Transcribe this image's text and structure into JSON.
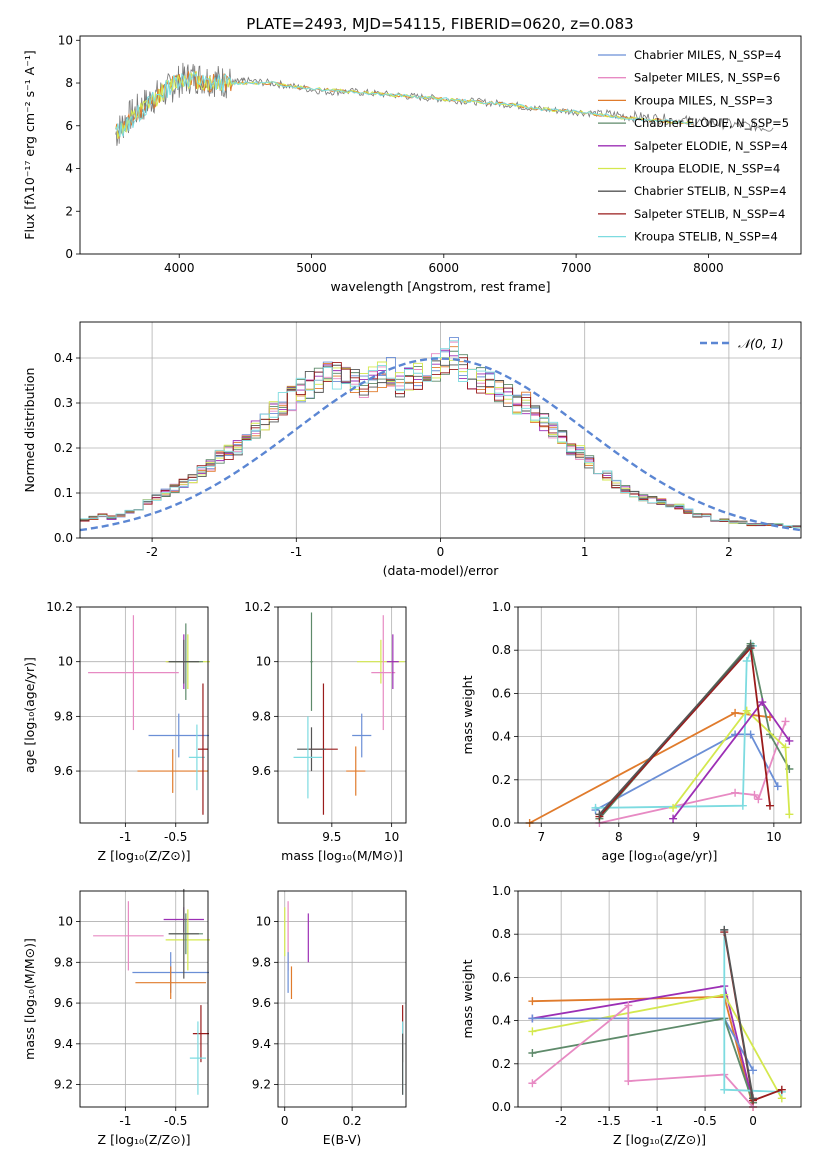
{
  "figure": {
    "title": "PLATE=2493, MJD=54115, FIBERID=0620, z=0.083"
  },
  "colors": {
    "Chabrier MILES": "#6b8fd6",
    "Salpeter MILES": "#e78ac3",
    "Kroupa MILES": "#e07b2c",
    "Chabrier ELODIE": "#5e8a6a",
    "Salpeter ELODIE": "#9c2fb5",
    "Kroupa ELODIE": "#d4e84e",
    "Chabrier STELIB": "#555555",
    "Salpeter STELIB": "#9a1c1c",
    "Kroupa STELIB": "#7ddbe0",
    "grid": "#b0b0b0",
    "gauss": "#5b86d3"
  },
  "chart_data": [
    {
      "id": "spectrum",
      "type": "line",
      "title": "PLATE=2493, MJD=54115, FIBERID=0620, z=0.083",
      "xlabel": "wavelength [Angstrom, rest frame]",
      "ylabel": "Flux [fλ10⁻¹⁷ erg cm⁻² s⁻¹ A⁻¹]",
      "xlim": [
        3250,
        8700
      ],
      "ylim": [
        0,
        10.2
      ],
      "xticks": [
        4000,
        5000,
        6000,
        7000,
        8000
      ],
      "yticks": [
        0,
        2,
        4,
        6,
        8,
        10
      ],
      "grid": false,
      "legend_position": "right",
      "legend": [
        "Chabrier MILES, N_SSP=4",
        "Salpeter MILES, N_SSP=6",
        "Kroupa MILES, N_SSP=3",
        "Chabrier ELODIE, N_SSP=5",
        "Salpeter ELODIE, N_SSP=4",
        "Kroupa ELODIE, N_SSP=4",
        "Chabrier STELIB, N_SSP=4",
        "Salpeter STELIB, N_SSP=4",
        "Kroupa STELIB, N_SSP=4"
      ],
      "data_series": {
        "name": "data",
        "x": [
          3520,
          3600,
          3700,
          3800,
          3900,
          4000,
          4100,
          4200,
          4300,
          4400,
          4500,
          4700,
          4900,
          5100,
          5300,
          5500,
          5700,
          5900,
          6100,
          6300,
          6500,
          6700,
          6900,
          7100,
          7300,
          7500,
          7700,
          7900,
          8100,
          8300,
          8500
        ],
        "y": [
          5.6,
          6.3,
          6.8,
          7.3,
          7.6,
          8.1,
          8.3,
          8.2,
          8.1,
          8.0,
          8.1,
          8.0,
          7.8,
          7.6,
          7.6,
          7.5,
          7.4,
          7.3,
          7.2,
          7.1,
          7.0,
          6.8,
          6.7,
          6.6,
          6.5,
          6.4,
          6.3,
          6.2,
          6.1,
          6.0,
          5.9
        ]
      },
      "model_series": {
        "name": "Kroupa STELIB, N_SSP=4",
        "x": [
          3520,
          3600,
          3700,
          3800,
          3900,
          4000,
          4100,
          4200,
          4300,
          4400,
          4500,
          4700,
          4900,
          5100,
          5300,
          5500,
          5700,
          5900,
          6100,
          6300,
          6500,
          6700,
          6900,
          7100,
          7300,
          7500,
          7700,
          7900
        ],
        "y": [
          5.7,
          6.0,
          6.6,
          7.2,
          7.7,
          8.2,
          8.2,
          8.0,
          8.0,
          8.0,
          8.0,
          8.0,
          7.8,
          7.7,
          7.6,
          7.5,
          7.4,
          7.3,
          7.2,
          7.1,
          7.0,
          6.8,
          6.7,
          6.6,
          6.4,
          6.3,
          6.2,
          6.1
        ]
      }
    },
    {
      "id": "residuals",
      "type": "bar",
      "xlabel": "(data-model)/error",
      "ylabel": "Normed distribution",
      "xlim": [
        -2.5,
        2.5
      ],
      "ylim": [
        0,
        0.48
      ],
      "xticks": [
        -2,
        -1,
        0,
        1,
        2
      ],
      "yticks": [
        0.0,
        0.1,
        0.2,
        0.3,
        0.4
      ],
      "grid": true,
      "legend_position": "top-right",
      "legend": [
        "𝒩(0, 1)"
      ],
      "bin_width": 0.1,
      "bin_start": -2.5,
      "histogram_envelope": [
        0.04,
        0.045,
        0.05,
        0.045,
        0.05,
        0.06,
        0.06,
        0.08,
        0.09,
        0.1,
        0.11,
        0.12,
        0.13,
        0.15,
        0.16,
        0.18,
        0.19,
        0.2,
        0.22,
        0.24,
        0.26,
        0.28,
        0.3,
        0.31,
        0.33,
        0.34,
        0.35,
        0.36,
        0.36,
        0.35,
        0.35,
        0.34,
        0.35,
        0.36,
        0.37,
        0.34,
        0.35,
        0.36,
        0.37,
        0.38,
        0.39,
        0.41,
        0.38,
        0.36,
        0.35,
        0.34,
        0.33,
        0.32,
        0.3,
        0.3,
        0.28,
        0.26,
        0.24,
        0.22,
        0.2,
        0.19,
        0.17,
        0.15,
        0.14,
        0.12,
        0.11,
        0.1,
        0.09,
        0.085,
        0.08,
        0.07,
        0.07,
        0.06,
        0.05,
        0.05,
        0.04,
        0.04,
        0.035,
        0.035,
        0.03,
        0.03,
        0.03,
        0.03,
        0.025,
        0.025
      ],
      "gauss_curve": {
        "name": "N(0,1)",
        "mean": 0,
        "sigma": 1,
        "style": "dashed"
      }
    },
    {
      "id": "age-vs-Z",
      "type": "scatter",
      "xlabel": "Z [log₁₀(Z/Z⊙)]",
      "ylabel": "age  [log₁₀(age/yr)]",
      "xlim": [
        -1.45,
        -0.18
      ],
      "ylim": [
        9.41,
        10.2
      ],
      "xticks": [
        -1.0,
        -0.5
      ],
      "yticks": [
        9.6,
        9.8,
        10.0,
        10.2
      ],
      "grid": true,
      "points": [
        {
          "series": "Salpeter MILES",
          "x": -0.92,
          "y": 9.96,
          "xerr": 0.45,
          "yerr": 0.21
        },
        {
          "series": "Kroupa MILES",
          "x": -0.53,
          "y": 9.6,
          "xerr": 0.35,
          "yerr": 0.08
        },
        {
          "series": "Chabrier MILES",
          "x": -0.47,
          "y": 9.73,
          "xerr": 0.3,
          "yerr": 0.08
        },
        {
          "series": "Salpeter ELODIE",
          "x": -0.42,
          "y": 10.0,
          "xerr": 0.17,
          "yerr": 0.1
        },
        {
          "series": "Kroupa ELODIE",
          "x": -0.38,
          "y": 10.0,
          "xerr": 0.22,
          "yerr": 0.1
        },
        {
          "series": "Chabrier ELODIE",
          "x": -0.4,
          "y": 10.0,
          "xerr": 0.17,
          "yerr": 0.14
        },
        {
          "series": "Chabrier STELIB",
          "x": -0.42,
          "y": 10.0,
          "xerr": 0.15,
          "yerr": 0.08
        },
        {
          "series": "Kroupa STELIB",
          "x": -0.29,
          "y": 9.65,
          "xerr": 0.08,
          "yerr": 0.12
        },
        {
          "series": "Salpeter STELIB",
          "x": -0.23,
          "y": 9.68,
          "xerr": 0.05,
          "yerr": 0.24
        }
      ]
    },
    {
      "id": "age-vs-mass",
      "type": "scatter",
      "xlabel": "mass [log₁₀(M/M⊙)]",
      "ylabel": "",
      "xlim": [
        9.05,
        10.12
      ],
      "ylim": [
        9.41,
        10.2
      ],
      "xticks": [
        9.5,
        10.0
      ],
      "yticks": [
        9.6,
        9.8,
        10.0,
        10.2
      ],
      "grid": true,
      "points": [
        {
          "series": "Salpeter STELIB",
          "x": 9.43,
          "y": 9.68,
          "xerr": 0.12,
          "yerr": 0.24
        },
        {
          "series": "Chabrier STELIB",
          "x": 9.33,
          "y": 9.68,
          "xerr": 0.12,
          "yerr": 0.08
        },
        {
          "series": "Kroupa STELIB",
          "x": 9.3,
          "y": 9.65,
          "xerr": 0.12,
          "yerr": 0.15
        },
        {
          "series": "Chabrier ELODIE",
          "x": 9.33,
          "y": 10.0,
          "xerr": 0.01,
          "yerr": 0.18
        },
        {
          "series": "Kroupa MILES",
          "x": 9.7,
          "y": 9.6,
          "xerr": 0.08,
          "yerr": 0.09
        },
        {
          "series": "Chabrier MILES",
          "x": 9.75,
          "y": 9.73,
          "xerr": 0.08,
          "yerr": 0.08
        },
        {
          "series": "Kroupa ELODIE",
          "x": 9.91,
          "y": 10.0,
          "xerr": 0.2,
          "yerr": 0.08
        },
        {
          "series": "Salpeter MILES",
          "x": 9.93,
          "y": 9.96,
          "xerr": 0.1,
          "yerr": 0.21
        },
        {
          "series": "Salpeter ELODIE",
          "x": 10.01,
          "y": 10.0,
          "xerr": 0.05,
          "yerr": 0.1
        }
      ]
    },
    {
      "id": "massweight-vs-age",
      "type": "line",
      "xlabel": "age  [log₁₀(age/yr)]",
      "ylabel": "mass weight",
      "xlim": [
        6.7,
        10.35
      ],
      "ylim": [
        0,
        1.0
      ],
      "xticks": [
        7,
        8,
        9,
        10
      ],
      "yticks": [
        0.0,
        0.2,
        0.4,
        0.6,
        0.8,
        1.0
      ],
      "grid": true,
      "series": [
        {
          "name": "Kroupa MILES",
          "x": [
            6.85,
            9.5,
            9.95
          ],
          "y": [
            0.0,
            0.51,
            0.49
          ]
        },
        {
          "name": "Chabrier MILES",
          "x": [
            7.7,
            9.5,
            9.7,
            10.05
          ],
          "y": [
            0.06,
            0.41,
            0.41,
            0.17
          ]
        },
        {
          "name": "Salpeter MILES",
          "x": [
            7.75,
            9.5,
            9.75,
            9.8,
            10.15
          ],
          "y": [
            0.0,
            0.14,
            0.13,
            0.11,
            0.47
          ]
        },
        {
          "name": "Kroupa STELIB",
          "x": [
            7.7,
            9.6,
            9.65,
            9.73
          ],
          "y": [
            0.07,
            0.08,
            0.75,
            0.82
          ]
        },
        {
          "name": "Chabrier ELODIE",
          "x": [
            7.75,
            9.7,
            9.95,
            10.2
          ],
          "y": [
            0.02,
            0.83,
            0.41,
            0.25
          ]
        },
        {
          "name": "Kroupa ELODIE",
          "x": [
            8.7,
            9.65,
            10.15,
            10.2
          ],
          "y": [
            0.07,
            0.52,
            0.35,
            0.04
          ]
        },
        {
          "name": "Salpeter ELODIE",
          "x": [
            8.7,
            9.85,
            10.2
          ],
          "y": [
            0.02,
            0.56,
            0.38
          ]
        },
        {
          "name": "Salpeter STELIB",
          "x": [
            7.75,
            9.7,
            9.95
          ],
          "y": [
            0.03,
            0.81,
            0.08
          ]
        },
        {
          "name": "Chabrier STELIB",
          "x": [
            7.75,
            9.7
          ],
          "y": [
            0.04,
            0.82
          ]
        }
      ]
    },
    {
      "id": "mass-vs-Z",
      "type": "scatter",
      "xlabel": "Z [log₁₀(Z/Z⊙)]",
      "ylabel": "mass [log₁₀(M/M⊙)]",
      "xlim": [
        -1.45,
        -0.18
      ],
      "ylim": [
        9.09,
        10.15
      ],
      "xticks": [
        -1.0,
        -0.5
      ],
      "yticks": [
        9.2,
        9.4,
        9.6,
        9.8,
        10.0
      ],
      "grid": true,
      "points": [
        {
          "series": "Salpeter MILES",
          "x": -0.97,
          "y": 9.93,
          "xerr": 0.35,
          "yerr": 0.17
        },
        {
          "series": "Salpeter ELODIE",
          "x": -0.42,
          "y": 10.01,
          "xerr": 0.2,
          "yerr": 0.06
        },
        {
          "series": "Kroupa ELODIE",
          "x": -0.38,
          "y": 9.91,
          "xerr": 0.22,
          "yerr": 0.15
        },
        {
          "series": "Chabrier ELODIE",
          "x": -0.4,
          "y": 9.94,
          "xerr": 0.17,
          "yerr": 0.1
        },
        {
          "series": "Chabrier MILES",
          "x": -0.55,
          "y": 9.75,
          "xerr": 0.38,
          "yerr": 0.1
        },
        {
          "series": "Kroupa MILES",
          "x": -0.55,
          "y": 9.7,
          "xerr": 0.35,
          "yerr": 0.08
        },
        {
          "series": "Chabrier STELIB",
          "x": -0.42,
          "y": 9.94,
          "xerr": 0.15,
          "yerr": 0.22
        },
        {
          "series": "Salpeter STELIB",
          "x": -0.25,
          "y": 9.45,
          "xerr": 0.08,
          "yerr": 0.14
        },
        {
          "series": "Kroupa STELIB",
          "x": -0.28,
          "y": 9.33,
          "xerr": 0.08,
          "yerr": 0.18
        }
      ]
    },
    {
      "id": "mass-vs-ebv",
      "type": "scatter",
      "xlabel": "E(B-V)",
      "ylabel": "",
      "xlim": [
        -0.02,
        0.36
      ],
      "ylim": [
        9.09,
        10.15
      ],
      "xticks": [
        0.0,
        0.2
      ],
      "yticks": [
        9.2,
        9.4,
        9.6,
        9.8,
        10.0
      ],
      "grid": true,
      "points": [
        {
          "series": "Kroupa ELODIE",
          "x": 0.0,
          "y": 9.95,
          "xerr": 0,
          "yerr": 0.12
        },
        {
          "series": "Salpeter MILES",
          "x": 0.01,
          "y": 9.93,
          "xerr": 0,
          "yerr": 0.17
        },
        {
          "series": "Kroupa MILES",
          "x": 0.02,
          "y": 9.7,
          "xerr": 0,
          "yerr": 0.08
        },
        {
          "series": "Salpeter ELODIE",
          "x": 0.07,
          "y": 9.92,
          "xerr": 0,
          "yerr": 0.12
        },
        {
          "series": "Chabrier MILES",
          "x": 0.01,
          "y": 9.75,
          "xerr": 0,
          "yerr": 0.1
        },
        {
          "series": "Salpeter STELIB",
          "x": 0.35,
          "y": 9.45,
          "xerr": 0,
          "yerr": 0.14
        },
        {
          "series": "Kroupa STELIB",
          "x": 0.35,
          "y": 9.33,
          "xerr": 0,
          "yerr": 0.18
        },
        {
          "series": "Chabrier STELIB",
          "x": 0.35,
          "y": 9.3,
          "xerr": 0,
          "yerr": 0.15
        }
      ]
    },
    {
      "id": "massweight-vs-Z",
      "type": "line",
      "xlabel": "Z [log₁₀(Z/Z⊙)]",
      "ylabel": "mass weight",
      "xlim": [
        -2.45,
        0.5
      ],
      "ylim": [
        0,
        1.0
      ],
      "xticks": [
        -2.0,
        -1.5,
        -1.0,
        -0.5,
        0.0
      ],
      "yticks": [
        0.0,
        0.2,
        0.4,
        0.6,
        0.8,
        1.0
      ],
      "grid": true,
      "series": [
        {
          "name": "Kroupa MILES",
          "x": [
            -2.3,
            -0.3,
            0.0
          ],
          "y": [
            0.49,
            0.51,
            0.0
          ]
        },
        {
          "name": "Salpeter ELODIE",
          "x": [
            -2.3,
            -0.3,
            0.0
          ],
          "y": [
            0.41,
            0.56,
            0.02
          ]
        },
        {
          "name": "Kroupa ELODIE",
          "x": [
            -2.3,
            -0.3,
            0.3
          ],
          "y": [
            0.35,
            0.52,
            0.04
          ]
        },
        {
          "name": "Chabrier MILES",
          "x": [
            -2.3,
            -0.3,
            0.0
          ],
          "y": [
            0.41,
            0.41,
            0.17
          ]
        },
        {
          "name": "Chabrier ELODIE",
          "x": [
            -2.3,
            -0.3,
            0.0
          ],
          "y": [
            0.25,
            0.41,
            0.02
          ]
        },
        {
          "name": "Salpeter MILES",
          "x": [
            -2.3,
            -1.3,
            -1.3,
            -0.3,
            0.0
          ],
          "y": [
            0.11,
            0.47,
            0.12,
            0.15,
            0.0
          ]
        },
        {
          "name": "Kroupa STELIB",
          "x": [
            -0.3,
            -0.3,
            0.3
          ],
          "y": [
            0.82,
            0.08,
            0.07
          ]
        },
        {
          "name": "Salpeter STELIB",
          "x": [
            -0.3,
            0.0,
            0.3
          ],
          "y": [
            0.81,
            0.03,
            0.08
          ]
        },
        {
          "name": "Chabrier STELIB",
          "x": [
            -0.3,
            0.0
          ],
          "y": [
            0.82,
            0.04
          ]
        }
      ]
    }
  ]
}
